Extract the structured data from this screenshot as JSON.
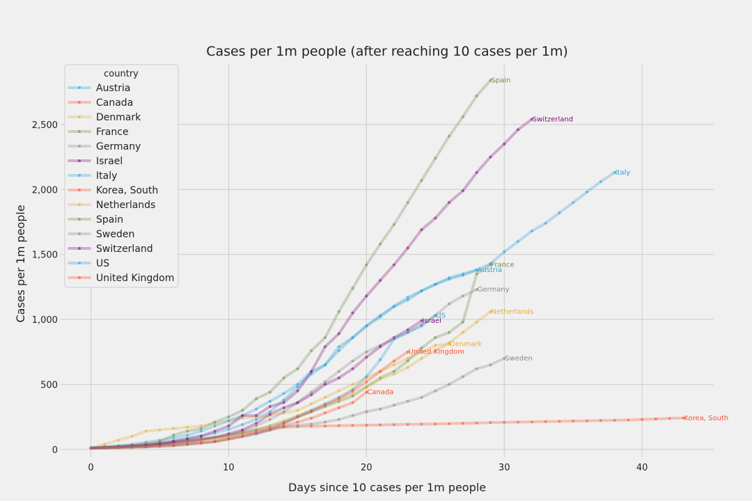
{
  "chart_data": {
    "type": "line",
    "title": "Cases per 1m people (after reaching 10 cases per 1m)",
    "xlabel": "Days since 10 cases per 1m people",
    "ylabel": "Cases per 1m people",
    "xlim": [
      -2.2,
      45.2
    ],
    "ylim": [
      -60,
      2960
    ],
    "xticks": [
      0,
      10,
      20,
      30,
      40
    ],
    "yticks": [
      0,
      500,
      1000,
      1500,
      2000,
      2500
    ],
    "ytick_labels": [
      "0",
      "500",
      "1,000",
      "1,500",
      "2,000",
      "2,500"
    ],
    "grid": true,
    "legend": {
      "title": "country",
      "position": "top-left"
    },
    "series": [
      {
        "name": "Austria",
        "color": "#30a2da",
        "values": [
          10,
          14,
          20,
          28,
          38,
          50,
          68,
          85,
          105,
          125,
          155,
          190,
          230,
          290,
          380,
          480,
          580,
          650,
          760,
          860,
          950,
          1030,
          1100,
          1170,
          1220,
          1270,
          1310,
          1340,
          1380
        ]
      },
      {
        "name": "Canada",
        "color": "#fc4f30",
        "values": [
          10,
          11,
          13,
          16,
          19,
          24,
          30,
          38,
          48,
          60,
          80,
          100,
          120,
          150,
          180,
          210,
          240,
          280,
          320,
          360,
          440
        ]
      },
      {
        "name": "Denmark",
        "color": "#e5ae38",
        "values": [
          10,
          40,
          70,
          100,
          140,
          150,
          160,
          170,
          180,
          200,
          220,
          240,
          250,
          260,
          280,
          300,
          350,
          400,
          450,
          500,
          550,
          600,
          650,
          700,
          750,
          800,
          810
        ]
      },
      {
        "name": "France",
        "color": "#6d904f",
        "values": [
          10,
          15,
          20,
          25,
          30,
          40,
          50,
          60,
          75,
          90,
          110,
          130,
          150,
          180,
          210,
          250,
          290,
          330,
          370,
          410,
          480,
          550,
          600,
          680,
          780,
          860,
          900,
          980,
          1350,
          1420
        ]
      },
      {
        "name": "Germany",
        "color": "#8b8b8b",
        "values": [
          10,
          12,
          15,
          20,
          25,
          35,
          45,
          60,
          75,
          90,
          110,
          140,
          180,
          230,
          290,
          360,
          440,
          520,
          600,
          680,
          750,
          800,
          850,
          900,
          960,
          1030,
          1120,
          1180,
          1230
        ]
      },
      {
        "name": "Israel",
        "color": "#810f7c",
        "values": [
          10,
          14,
          18,
          24,
          30,
          40,
          50,
          60,
          75,
          90,
          120,
          150,
          200,
          270,
          320,
          360,
          420,
          500,
          550,
          620,
          710,
          790,
          860,
          920,
          990
        ]
      },
      {
        "name": "Italy",
        "color": "#30a2da",
        "values": [
          10,
          20,
          30,
          40,
          55,
          70,
          90,
          110,
          140,
          180,
          220,
          260,
          310,
          370,
          430,
          500,
          600,
          650,
          790,
          860,
          950,
          1020,
          1100,
          1150,
          1220,
          1270,
          1320,
          1350,
          1380,
          1430,
          1520,
          1600,
          1680,
          1740,
          1820,
          1900,
          1980,
          2060,
          2130
        ]
      },
      {
        "name": "Korea, South",
        "color": "#fc4f30",
        "values": [
          10,
          15,
          20,
          30,
          40,
          50,
          60,
          70,
          80,
          90,
          100,
          120,
          130,
          150,
          170,
          175,
          178,
          180,
          182,
          184,
          186,
          188,
          190,
          192,
          194,
          196,
          198,
          200,
          203,
          206,
          208,
          210,
          212,
          214,
          216,
          218,
          220,
          222,
          224,
          226,
          230,
          234,
          238,
          241
        ]
      },
      {
        "name": "Netherlands",
        "color": "#e5ae38",
        "values": [
          10,
          12,
          15,
          20,
          25,
          30,
          40,
          50,
          60,
          80,
          100,
          120,
          150,
          180,
          220,
          260,
          300,
          340,
          380,
          430,
          480,
          540,
          580,
          630,
          700,
          760,
          820,
          900,
          980,
          1060
        ]
      },
      {
        "name": "Spain",
        "color": "#6d904f",
        "values": [
          10,
          15,
          20,
          30,
          40,
          60,
          110,
          140,
          160,
          210,
          250,
          300,
          390,
          440,
          550,
          620,
          760,
          860,
          1060,
          1240,
          1420,
          1580,
          1730,
          1900,
          2070,
          2240,
          2410,
          2560,
          2720,
          2840
        ]
      },
      {
        "name": "Sweden",
        "color": "#8b8b8b",
        "values": [
          10,
          14,
          18,
          24,
          30,
          40,
          50,
          65,
          80,
          95,
          110,
          130,
          150,
          165,
          175,
          185,
          195,
          210,
          230,
          260,
          290,
          310,
          340,
          370,
          400,
          450,
          500,
          560,
          620,
          650,
          700
        ]
      },
      {
        "name": "Switzerland",
        "color": "#810f7c",
        "values": [
          10,
          15,
          20,
          25,
          30,
          40,
          60,
          80,
          100,
          140,
          180,
          260,
          260,
          330,
          360,
          450,
          600,
          790,
          890,
          1050,
          1180,
          1300,
          1420,
          1550,
          1690,
          1780,
          1900,
          1990,
          2130,
          2250,
          2350,
          2460,
          2540
        ]
      },
      {
        "name": "US",
        "color": "#30a2da",
        "values": [
          10,
          12,
          14,
          17,
          20,
          25,
          30,
          40,
          50,
          60,
          80,
          100,
          120,
          150,
          200,
          250,
          300,
          350,
          400,
          460,
          560,
          690,
          850,
          900,
          950,
          1030
        ]
      },
      {
        "name": "United Kingdom",
        "color": "#fc4f30",
        "values": [
          10,
          12,
          14,
          17,
          20,
          25,
          30,
          40,
          50,
          60,
          80,
          100,
          130,
          160,
          200,
          250,
          290,
          340,
          390,
          450,
          520,
          600,
          680,
          750
        ]
      }
    ]
  }
}
